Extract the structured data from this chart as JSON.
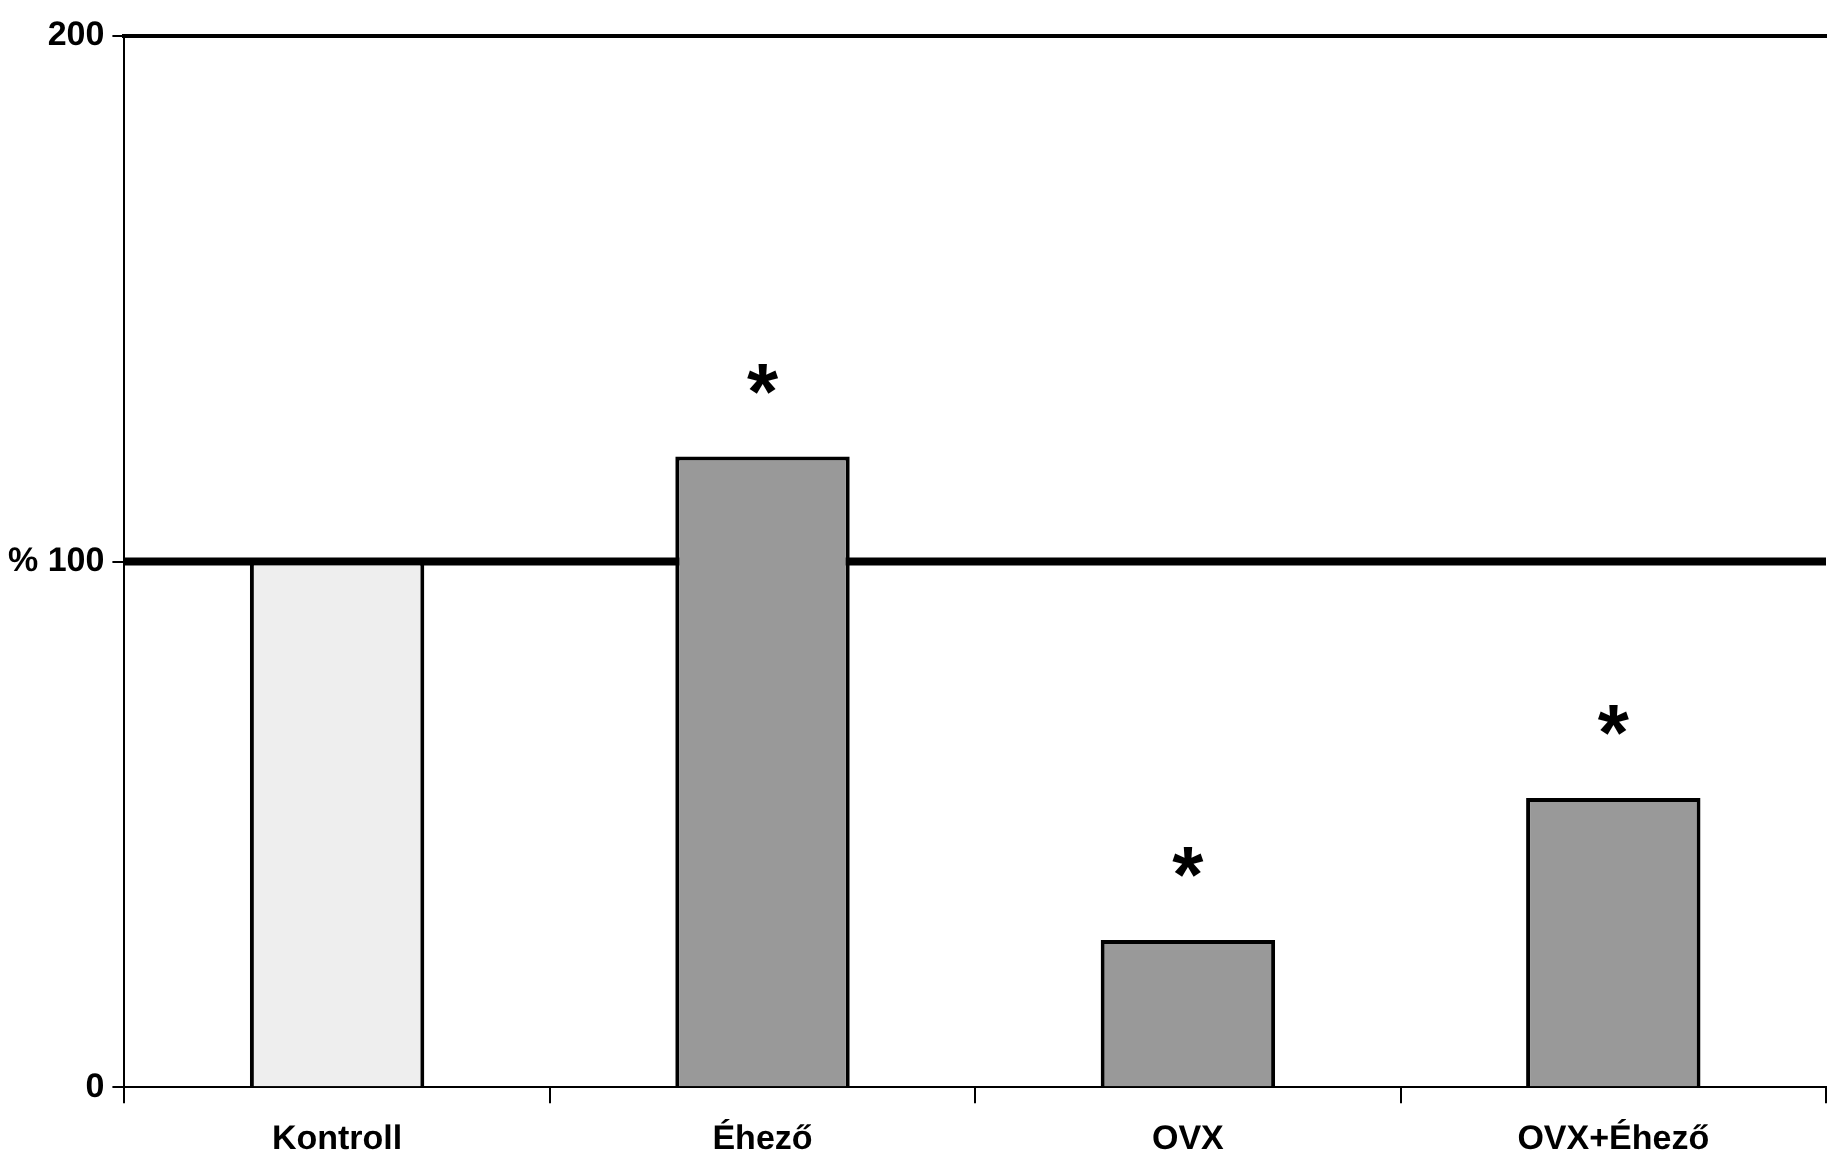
{
  "chart_data": {
    "type": "bar",
    "categories": [
      "Kontroll",
      "Éhező",
      "OVX",
      "OVX+Éhező"
    ],
    "values": [
      100,
      120,
      28,
      55
    ],
    "colors": [
      "#eeeeee",
      "#999999",
      "#999999",
      "#999999"
    ],
    "ylim": [
      0,
      200
    ],
    "yticks": [
      0,
      {
        "value": 100,
        "label": "% 100"
      },
      200
    ],
    "grid": false,
    "legend": false,
    "ref_lines": [
      {
        "axis": "y",
        "value": 100,
        "label": null,
        "color": "#000000"
      }
    ],
    "annotations": [
      {
        "text": "*",
        "x": "Éhező",
        "y": 120
      },
      {
        "text": "*",
        "x": "OVX",
        "y": 28
      },
      {
        "text": "*",
        "x": "OVX+Éhező",
        "y": 55
      }
    ]
  }
}
